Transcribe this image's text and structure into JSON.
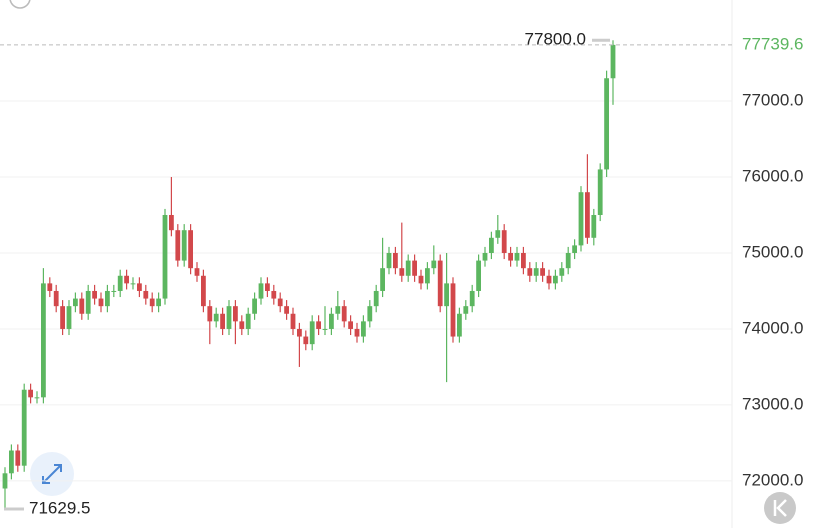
{
  "chart_data": {
    "type": "candlestick",
    "open": [
      71900,
      72100,
      72400,
      72200,
      73200,
      73100,
      73100,
      74600,
      74500,
      74300,
      74000,
      74300,
      74400,
      74200,
      74500,
      74400,
      74300,
      74500,
      74500,
      74700,
      74600,
      74600,
      74500,
      74400,
      74300,
      74400,
      75500,
      75300,
      74900,
      75300,
      74800,
      74700,
      74300,
      74100,
      74200,
      74000,
      74300,
      74100,
      74000,
      74200,
      74400,
      74600,
      74500,
      74400,
      74300,
      74200,
      74000,
      73900,
      73800,
      74100,
      74000,
      74000,
      74200,
      74300,
      74100,
      74000,
      73900,
      74100,
      74300,
      74500,
      74800,
      75000,
      74800,
      74700,
      74900,
      74700,
      74600,
      74800,
      74900,
      74300,
      74600,
      73900,
      74200,
      74300,
      74500,
      74900,
      75000,
      75200,
      75300,
      75000,
      74900,
      75000,
      74800,
      74700,
      74800,
      74700,
      74600,
      74700,
      74800,
      75000,
      75100,
      75800,
      75200,
      75500,
      76100,
      77300
    ],
    "high": [
      72180,
      72480,
      72480,
      73280,
      73280,
      73180,
      74800,
      74680,
      74580,
      74380,
      74380,
      74480,
      74480,
      74580,
      74580,
      74480,
      74580,
      74580,
      74780,
      74780,
      74680,
      74680,
      74580,
      74480,
      74480,
      75580,
      76000,
      75380,
      75380,
      75380,
      74880,
      74780,
      74380,
      74280,
      74280,
      74380,
      74380,
      74180,
      74280,
      74480,
      74680,
      74680,
      74580,
      74480,
      74380,
      74280,
      74080,
      73980,
      74180,
      74180,
      74300,
      74280,
      74500,
      74380,
      74180,
      74080,
      74180,
      74380,
      74580,
      75200,
      75080,
      75080,
      75400,
      74980,
      74980,
      74780,
      74880,
      75100,
      74980,
      75000,
      74680,
      74280,
      74380,
      74580,
      74980,
      75080,
      75280,
      75500,
      75380,
      75080,
      75080,
      75080,
      74880,
      74880,
      74880,
      74780,
      74780,
      74880,
      75080,
      75180,
      75880,
      76300,
      75580,
      76180,
      77400,
      77800
    ],
    "low": [
      71629.5,
      72020,
      72120,
      72120,
      73020,
      73020,
      73020,
      74420,
      74220,
      73920,
      73920,
      74220,
      74120,
      74120,
      74320,
      74220,
      74220,
      74420,
      74420,
      74520,
      74520,
      74420,
      74320,
      74220,
      74220,
      74320,
      75220,
      74820,
      74820,
      74720,
      74620,
      74220,
      73800,
      74020,
      73920,
      73920,
      73800,
      73920,
      73920,
      74120,
      74320,
      74420,
      74320,
      74220,
      74120,
      73920,
      73500,
      73720,
      73720,
      73920,
      73920,
      73920,
      74120,
      74020,
      73920,
      73820,
      73820,
      74020,
      74220,
      74420,
      74720,
      74720,
      74620,
      74620,
      74620,
      74520,
      74520,
      74720,
      74220,
      73300,
      73820,
      73820,
      74120,
      74220,
      74420,
      74820,
      74920,
      75120,
      74920,
      74820,
      74820,
      74720,
      74620,
      74620,
      74620,
      74520,
      74520,
      74620,
      74720,
      74920,
      75020,
      75120,
      75100,
      75420,
      76000,
      76950
    ],
    "close": [
      72100,
      72400,
      72200,
      73200,
      73100,
      73100,
      74600,
      74500,
      74300,
      74000,
      74300,
      74400,
      74200,
      74500,
      74400,
      74300,
      74500,
      74500,
      74700,
      74600,
      74600,
      74500,
      74400,
      74300,
      74400,
      75500,
      75300,
      74900,
      75300,
      74800,
      74700,
      74300,
      74100,
      74200,
      74000,
      74300,
      74100,
      74000,
      74200,
      74400,
      74600,
      74500,
      74400,
      74300,
      74200,
      74000,
      73900,
      73800,
      74100,
      74000,
      74000,
      74200,
      74300,
      74100,
      74000,
      73900,
      74100,
      74300,
      74500,
      74800,
      75000,
      74800,
      74700,
      74900,
      74700,
      74600,
      74800,
      74900,
      74300,
      74600,
      73900,
      74200,
      74300,
      74500,
      74900,
      75000,
      75200,
      75300,
      75000,
      74900,
      75000,
      74800,
      74700,
      74800,
      74700,
      74600,
      74700,
      74800,
      75000,
      75100,
      75800,
      75200,
      75500,
      76100,
      77300,
      77739.6
    ],
    "up_color": "#5cb660",
    "down_color": "#d2484b",
    "ylim": [
      71380,
      78330
    ],
    "yticks": [
      {
        "value": 72000,
        "label": "72000.0"
      },
      {
        "value": 73000,
        "label": "73000.0"
      },
      {
        "value": 74000,
        "label": "74000.0"
      },
      {
        "value": 75000,
        "label": "75000.0"
      },
      {
        "value": 76000,
        "label": "76000.0"
      },
      {
        "value": 77000,
        "label": "77000.0"
      }
    ],
    "grid": true,
    "high_marker": {
      "value": 77800,
      "label": "77800.0"
    },
    "low_marker": {
      "value": 71629.5,
      "label": "71629.5"
    },
    "last_price": 77739.6
  }
}
